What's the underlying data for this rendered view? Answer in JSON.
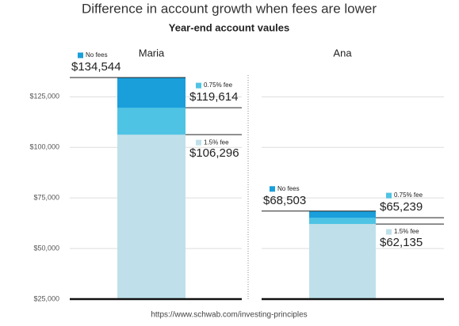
{
  "chart_data": {
    "type": "overlap-bar",
    "title": "Difference in account growth when fees are lower",
    "subtitle": "Year-end account vaules",
    "source": "https://www.schwab.com/investing-principles",
    "categories": [
      "Maria",
      "Ana"
    ],
    "series": [
      {
        "name": "No fees",
        "color": "#1a9fdb",
        "values": [
          134544,
          68503
        ],
        "value_labels": [
          "$134,544",
          "$68,503"
        ]
      },
      {
        "name": "0.75% fee",
        "color": "#4fc3e3",
        "values": [
          119614,
          65239
        ],
        "value_labels": [
          "$119,614",
          "$65,239"
        ]
      },
      {
        "name": "1.5% fee",
        "color": "#bfe0ea",
        "values": [
          106296,
          62135
        ],
        "value_labels": [
          "$106,296",
          "$62,135"
        ]
      }
    ],
    "ylim": [
      25000,
      140000
    ],
    "yticks": [
      {
        "value": 25000,
        "label": "$25,000"
      },
      {
        "value": 50000,
        "label": "$50,000"
      },
      {
        "value": 75000,
        "label": "$75,000"
      },
      {
        "value": 100000,
        "label": "$100,000"
      },
      {
        "value": 125000,
        "label": "$125,000"
      }
    ],
    "grid": true
  }
}
